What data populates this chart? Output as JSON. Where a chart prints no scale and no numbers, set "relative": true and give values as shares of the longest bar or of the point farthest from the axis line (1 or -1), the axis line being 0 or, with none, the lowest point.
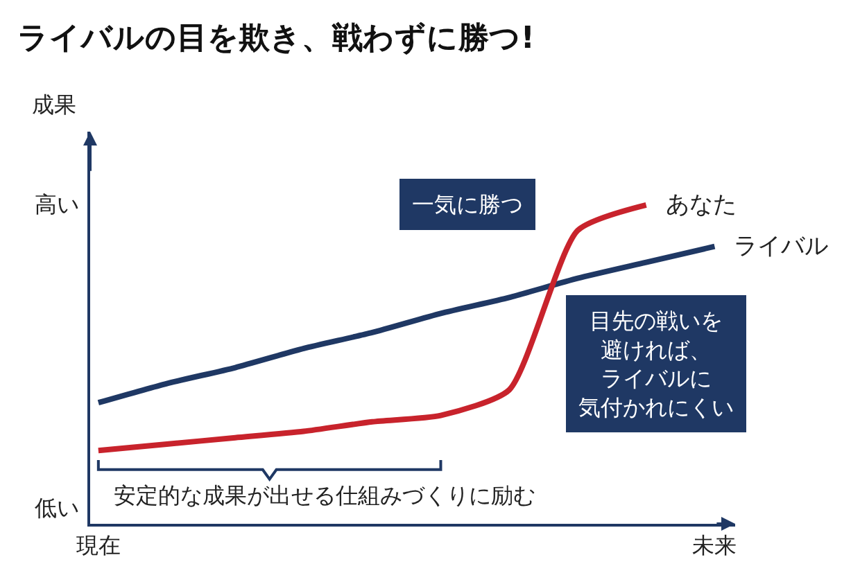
{
  "chart_data": {
    "type": "line",
    "relative": true,
    "legend": "right",
    "title": "ライバルの目を欺き、戦わずに勝つ!",
    "ylabel": "成果",
    "categories": [
      "現在",
      null,
      null,
      null,
      null,
      null,
      null,
      null,
      null,
      "未来"
    ],
    "series": [
      {
        "name": "ライバル",
        "color": "#1f3864",
        "values": [
          0.38,
          0.44,
          0.49,
          0.55,
          0.6,
          0.66,
          0.71,
          0.77,
          0.82,
          0.87
        ]
      },
      {
        "name": "あなた",
        "color": "#c8232c",
        "values": [
          0.23,
          0.25,
          0.27,
          0.29,
          0.32,
          0.34,
          0.42,
          0.92,
          1,
          null
        ]
      }
    ],
    "annotations": [
      "高い",
      "低い",
      "一気に勝つ",
      "目先の戦いを避ければ、ライバルに気付かれにくい",
      "安定的な成果が出せる仕組みづくりに励む"
    ]
  }
}
